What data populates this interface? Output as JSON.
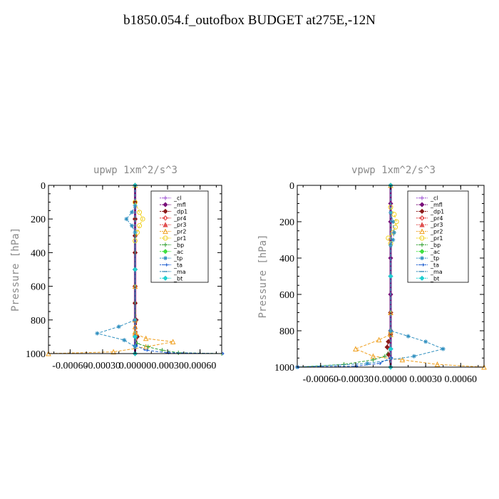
{
  "page": {
    "title": "b1850.054.f_outofbox  BUDGET at275E,-12N"
  },
  "legend_entries": [
    {
      "name": "_cl",
      "color": "#9b4fd1",
      "marker": "plus"
    },
    {
      "name": "_mfl",
      "color": "#7a0f7a",
      "marker": "diamond"
    },
    {
      "name": "_dp1",
      "color": "#8b1a1a",
      "marker": "diamond"
    },
    {
      "name": "_pr4",
      "color": "#e03030",
      "marker": "diamond-open"
    },
    {
      "name": "_pr3",
      "color": "#e05050",
      "marker": "tri"
    },
    {
      "name": "_pr2",
      "color": "#f0a020",
      "marker": "tri-open"
    },
    {
      "name": "_pr1",
      "color": "#f0d020",
      "marker": "circle-open"
    },
    {
      "name": "_bp",
      "color": "#2e9e2e",
      "marker": "plus"
    },
    {
      "name": "_ac",
      "color": "#40e040",
      "marker": "diamond"
    },
    {
      "name": "_tp",
      "color": "#3090c0",
      "marker": "star"
    },
    {
      "name": "_ta",
      "color": "#2060d0",
      "marker": "arrow"
    },
    {
      "name": "_ma",
      "color": "#2080b0",
      "marker": "dash"
    },
    {
      "name": "_bt",
      "color": "#20d0d0",
      "marker": "diamond"
    }
  ],
  "chart_data": [
    {
      "type": "line",
      "title": "upwp   1xm^2/s^3",
      "ylabel": "Pressure [hPa]",
      "xlabel": "",
      "xlim": [
        -0.0008,
        0.0008
      ],
      "ylim": [
        0,
        1000
      ],
      "y_inverted": true,
      "xticks": [
        -0.0006,
        -0.0003,
        0.0,
        0.0003,
        0.0006
      ],
      "xtick_labels": [
        "-0.00060",
        "-0.00030",
        "0.00000",
        "0.00030",
        "0.00060"
      ],
      "yticks": [
        0,
        200,
        400,
        600,
        800,
        1000
      ],
      "ytick_labels": [
        "0",
        "200",
        "400",
        "600",
        "800",
        "1000"
      ],
      "grid": false,
      "legend_position": "upper-right",
      "series": [
        {
          "name": "_cl",
          "color": "#9b4fd1",
          "x": [
            0,
            0,
            0,
            0,
            0,
            0,
            0,
            0,
            0,
            0,
            0
          ],
          "y": [
            0,
            100,
            200,
            300,
            400,
            500,
            600,
            700,
            800,
            900,
            1000
          ]
        },
        {
          "name": "_mfl",
          "color": "#7a0f7a",
          "x": [
            0,
            0,
            0,
            0,
            0,
            0,
            0,
            0,
            0,
            0,
            0
          ],
          "y": [
            0,
            100,
            200,
            300,
            400,
            500,
            600,
            700,
            800,
            900,
            1000
          ]
        },
        {
          "name": "_dp1",
          "color": "#8b1a1a",
          "x": [
            0,
            0,
            0,
            0,
            0,
            0,
            0,
            0,
            1e-05,
            2e-05,
            0
          ],
          "y": [
            0,
            100,
            200,
            300,
            400,
            500,
            600,
            700,
            800,
            900,
            1000
          ]
        },
        {
          "name": "_pr2",
          "color": "#f0a020",
          "x": [
            0,
            0,
            0,
            0,
            0,
            0,
            0.0001,
            0.00035,
            0.0001,
            -0.0002,
            -0.0008
          ],
          "y": [
            0,
            600,
            800,
            840,
            870,
            880,
            910,
            930,
            960,
            990,
            1000
          ]
        },
        {
          "name": "_pr1",
          "color": "#f0d020",
          "x": [
            0,
            4e-05,
            7e-05,
            4e-05,
            2e-05,
            0
          ],
          "y": [
            100,
            160,
            200,
            240,
            280,
            330
          ]
        },
        {
          "name": "_bp",
          "color": "#2e9e2e",
          "x": [
            0,
            2e-05,
            0.00012,
            0.00025,
            0.0004,
            0.0008
          ],
          "y": [
            900,
            940,
            960,
            980,
            995,
            1000
          ]
        },
        {
          "name": "_tp",
          "color": "#3090c0",
          "x": [
            0,
            -3e-05,
            -8e-05,
            -3e-05,
            0,
            0,
            -0.00015,
            -0.00035,
            -0.0001,
            0
          ],
          "y": [
            120,
            160,
            200,
            240,
            280,
            800,
            840,
            880,
            920,
            960
          ]
        },
        {
          "name": "_ta",
          "color": "#2060d0",
          "x": [
            0,
            0,
            0.0001,
            0.0003,
            0.0008
          ],
          "y": [
            900,
            950,
            980,
            995,
            1000
          ]
        },
        {
          "name": "_bt",
          "color": "#20d0d0",
          "x": [
            0,
            0,
            0,
            0
          ],
          "y": [
            0,
            500,
            900,
            1000
          ]
        }
      ]
    },
    {
      "type": "line",
      "title": "vpwp   1xm^2/s^3",
      "ylabel": "Pressure [hPa]",
      "xlabel": "",
      "xlim": [
        -0.0008,
        0.0008
      ],
      "ylim": [
        0,
        1000
      ],
      "y_inverted": true,
      "xticks": [
        -0.0006,
        -0.0003,
        0.0,
        0.0003,
        0.0006
      ],
      "xtick_labels": [
        "-0.00060",
        "-0.00030",
        "0.00000",
        "0.00030",
        "0.00060"
      ],
      "yticks": [
        0,
        200,
        400,
        600,
        800,
        1000
      ],
      "ytick_labels": [
        "0",
        "200",
        "400",
        "600",
        "800",
        "1000"
      ],
      "grid": false,
      "legend_position": "upper-right",
      "series": [
        {
          "name": "_cl",
          "color": "#9b4fd1",
          "x": [
            0,
            0,
            0,
            0,
            0,
            0,
            0,
            0,
            0,
            0,
            0
          ],
          "y": [
            0,
            100,
            200,
            300,
            400,
            500,
            600,
            700,
            800,
            900,
            1000
          ]
        },
        {
          "name": "_mfl",
          "color": "#7a0f7a",
          "x": [
            0,
            0,
            0,
            0,
            0,
            0,
            0,
            0,
            0,
            0,
            0
          ],
          "y": [
            0,
            100,
            200,
            300,
            400,
            500,
            600,
            700,
            800,
            900,
            1000
          ]
        },
        {
          "name": "_dp1",
          "color": "#8b1a1a",
          "x": [
            0,
            0,
            0,
            -2e-05,
            -3e-05,
            -2e-05,
            0
          ],
          "y": [
            0,
            700,
            820,
            860,
            890,
            930,
            1000
          ]
        },
        {
          "name": "_pr2",
          "color": "#f0a020",
          "x": [
            0,
            0,
            0,
            0,
            -0.0001,
            -0.0003,
            -0.00015,
            0.0001,
            0.0004,
            0.0008
          ],
          "y": [
            0,
            700,
            800,
            820,
            850,
            900,
            940,
            960,
            985,
            1000
          ]
        },
        {
          "name": "_pr1",
          "color": "#f0d020",
          "x": [
            0,
            3e-05,
            5e-05,
            4e-05,
            2e-05,
            -2e-05,
            0
          ],
          "y": [
            120,
            160,
            200,
            230,
            260,
            290,
            320
          ]
        },
        {
          "name": "_bp",
          "color": "#2e9e2e",
          "x": [
            0,
            -5e-05,
            -0.00015,
            -0.0004,
            -0.0008
          ],
          "y": [
            900,
            940,
            960,
            985,
            1000
          ]
        },
        {
          "name": "_tp",
          "color": "#3090c0",
          "x": [
            0,
            2e-05,
            3e-05,
            2e-05,
            0,
            0,
            0.00015,
            0.0003,
            0.00045,
            0.0002,
            -0.0002,
            -0.0008
          ],
          "y": [
            150,
            200,
            260,
            300,
            330,
            800,
            830,
            860,
            900,
            940,
            980,
            1000
          ]
        },
        {
          "name": "_ta",
          "color": "#2060d0",
          "x": [
            0,
            0,
            -0.0001,
            -0.0003,
            -0.0008
          ],
          "y": [
            900,
            950,
            980,
            995,
            1000
          ]
        },
        {
          "name": "_bt",
          "color": "#20d0d0",
          "x": [
            0,
            0,
            0,
            0
          ],
          "y": [
            0,
            500,
            900,
            1000
          ]
        }
      ]
    }
  ]
}
